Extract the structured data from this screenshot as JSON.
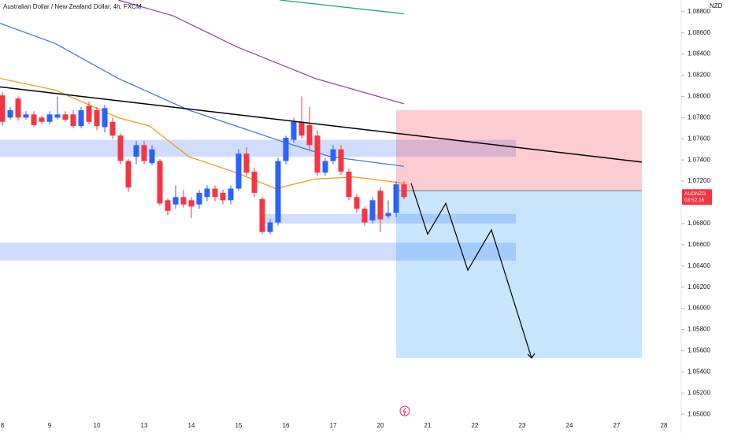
{
  "chart_data": {
    "type": "candlestick",
    "title": "Australian Dollar / New Zealand Dollar, 4h, FXCM",
    "currency_label": "NZD",
    "symbol_label": "AUDNZD",
    "countdown_label": "03:52:16",
    "up_color": "#2962ff",
    "down_color": "#f23645",
    "x": [
      0,
      1,
      2,
      3,
      4,
      5,
      6,
      7,
      8,
      9,
      10,
      11,
      12,
      13,
      14,
      15,
      16,
      17,
      18,
      19,
      20,
      21,
      22,
      23,
      24,
      25,
      26,
      27,
      28,
      29,
      30,
      31,
      32,
      33,
      34,
      35,
      36,
      37,
      38,
      39,
      40,
      41,
      42,
      43,
      44,
      45,
      46,
      47,
      48,
      49,
      50,
      51
    ],
    "open": [
      1.0801,
      1.078,
      1.0798,
      1.078,
      1.0783,
      1.078,
      1.0776,
      1.078,
      1.0783,
      1.0783,
      1.0772,
      1.0791,
      1.0787,
      1.0771,
      1.0776,
      1.0763,
      1.0739,
      1.0743,
      1.0754,
      1.0737,
      1.0739,
      1.0702,
      1.0698,
      1.0705,
      1.0702,
      1.0698,
      1.0705,
      1.0713,
      1.0709,
      1.0702,
      1.0713,
      1.0746,
      1.0729,
      1.0703,
      1.0672,
      1.0681,
      1.0739,
      1.0759,
      1.0776,
      1.0773,
      1.0763,
      1.0728,
      1.0739,
      1.075,
      1.0729,
      1.0705,
      1.0694,
      1.0683,
      1.0711,
      1.0687,
      1.069,
      1.0717
    ],
    "high": [
      1.0804,
      1.079,
      1.08,
      1.0786,
      1.0786,
      1.0782,
      1.0786,
      1.08,
      1.0786,
      1.0787,
      1.079,
      1.0795,
      1.079,
      1.0792,
      1.078,
      1.0765,
      1.0741,
      1.0758,
      1.0758,
      1.0754,
      1.0741,
      1.0704,
      1.0716,
      1.0712,
      1.0705,
      1.0712,
      1.0716,
      1.0716,
      1.0712,
      1.0716,
      1.075,
      1.0752,
      1.0733,
      1.0705,
      1.0684,
      1.0742,
      1.0763,
      1.078,
      1.08,
      1.079,
      1.0768,
      1.0742,
      1.0754,
      1.0754,
      1.0732,
      1.0708,
      1.0696,
      1.0705,
      1.0714,
      1.0702,
      1.072,
      1.072
    ],
    "low": [
      1.0772,
      1.0778,
      1.0777,
      1.0778,
      1.0771,
      1.0774,
      1.0774,
      1.0778,
      1.0776,
      1.077,
      1.077,
      1.0774,
      1.0768,
      1.0766,
      1.076,
      1.0736,
      1.071,
      1.0736,
      1.0736,
      1.0735,
      1.0697,
      1.0688,
      1.0694,
      1.0695,
      1.0685,
      1.0694,
      1.0701,
      1.0701,
      1.0698,
      1.0698,
      1.0711,
      1.0725,
      1.0705,
      1.067,
      1.067,
      1.0678,
      1.0736,
      1.0756,
      1.076,
      1.075,
      1.0725,
      1.0725,
      1.0736,
      1.0726,
      1.0702,
      1.069,
      1.0678,
      1.068,
      1.0672,
      1.0685,
      1.0686,
      1.0703
    ],
    "close": [
      1.0776,
      1.0787,
      1.078,
      1.0783,
      1.0773,
      1.0776,
      1.0783,
      1.0783,
      1.0778,
      1.0772,
      1.0787,
      1.0776,
      1.0772,
      1.0789,
      1.0763,
      1.0739,
      1.0714,
      1.0754,
      1.0739,
      1.075,
      1.0699,
      1.0692,
      1.0705,
      1.0698,
      1.0696,
      1.0709,
      1.0713,
      1.0705,
      1.0702,
      1.0713,
      1.0746,
      1.0728,
      1.0709,
      1.0672,
      1.0681,
      1.0739,
      1.0761,
      1.0776,
      1.0763,
      1.0754,
      1.0728,
      1.0739,
      1.075,
      1.0729,
      1.0705,
      1.0694,
      1.0681,
      1.0702,
      1.0684,
      1.069,
      1.0717,
      1.0705
    ],
    "lines": [
      {
        "color": "#f59b1b",
        "x": [
          -0.3,
          6.7,
          14.7,
          18.7,
          23.7,
          29.7,
          34.7,
          39.7,
          44.7,
          51
        ],
        "values": [
          1.0817,
          1.0806,
          1.078,
          1.0772,
          1.0743,
          1.0728,
          1.0713,
          1.0722,
          1.0724,
          1.0718
        ]
      },
      {
        "color": "#3c78d8",
        "x": [
          -0.3,
          6.7,
          14.7,
          23.7,
          29.7,
          35.7,
          41.7,
          51
        ],
        "values": [
          1.0869,
          1.085,
          1.0817,
          1.0787,
          1.0772,
          1.0757,
          1.0743,
          1.0734
        ]
      },
      {
        "color": "#a23fb5",
        "x": [
          14.7,
          21.7,
          29.7,
          39.7,
          51
        ],
        "values": [
          1.0891,
          1.0876,
          1.0847,
          1.0817,
          1.0793
        ]
      },
      {
        "color": "#1aa86a",
        "x": [
          35.2,
          51
        ],
        "values": [
          1.0891,
          1.0878
        ]
      }
    ],
    "trendline": {
      "color": "#000000",
      "x": [
        -0.3,
        81.2
      ],
      "values": [
        1.0809,
        1.0738
      ]
    },
    "zones": [
      {
        "x": [
          -0.3,
          65.2
        ],
        "y": [
          1.0743,
          1.0759
        ],
        "color": "#2962ff"
      },
      {
        "x": [
          33,
          65.2
        ],
        "y": [
          1.068,
          1.0689
        ],
        "color": "#2962ff"
      },
      {
        "x": [
          -0.3,
          65.2
        ],
        "y": [
          1.0645,
          1.0662
        ],
        "color": "#2962ff"
      }
    ],
    "position": {
      "x": [
        50,
        81.2
      ],
      "stop": 1.0787,
      "entry": 1.0711,
      "target": 1.0553,
      "risk_color": "#f23645",
      "reward_color": "#2196f3"
    },
    "projection": {
      "color": "#000000",
      "x": [
        51.9,
        54,
        56.3,
        59.1,
        62.1,
        67.2
      ],
      "values": [
        1.0718,
        1.067,
        1.0699,
        1.0636,
        1.0674,
        1.0553
      ]
    },
    "xlim": [
      -0.3,
      86.2
    ],
    "ylim": [
      1.0486,
      1.0891
    ],
    "xticks": [
      {
        "value": 0,
        "label": "8"
      },
      {
        "value": 6,
        "label": "9"
      },
      {
        "value": 12,
        "label": "10"
      },
      {
        "value": 18,
        "label": "13"
      },
      {
        "value": 24,
        "label": "14"
      },
      {
        "value": 30,
        "label": "15"
      },
      {
        "value": 36,
        "label": "16"
      },
      {
        "value": 42,
        "label": "17"
      },
      {
        "value": 48,
        "label": "20"
      },
      {
        "value": 54,
        "label": "21"
      },
      {
        "value": 60,
        "label": "22"
      },
      {
        "value": 66,
        "label": "23"
      },
      {
        "value": 72,
        "label": "24"
      },
      {
        "value": 78,
        "label": "27"
      },
      {
        "value": 84,
        "label": "28"
      }
    ],
    "yticks": [
      {
        "value": 1.088,
        "label": "1.08800"
      },
      {
        "value": 1.086,
        "label": "1.08600"
      },
      {
        "value": 1.084,
        "label": "1.08400"
      },
      {
        "value": 1.082,
        "label": "1.08200"
      },
      {
        "value": 1.08,
        "label": "1.08000"
      },
      {
        "value": 1.078,
        "label": "1.07800"
      },
      {
        "value": 1.076,
        "label": "1.07600"
      },
      {
        "value": 1.074,
        "label": "1.07400"
      },
      {
        "value": 1.072,
        "label": "1.07200"
      },
      {
        "value": 1.07,
        "label": "1.07000"
      },
      {
        "value": 1.068,
        "label": "1.06800"
      },
      {
        "value": 1.066,
        "label": "1.06600"
      },
      {
        "value": 1.064,
        "label": "1.06400"
      },
      {
        "value": 1.062,
        "label": "1.06200"
      },
      {
        "value": 1.06,
        "label": "1.06000"
      },
      {
        "value": 1.058,
        "label": "1.05800"
      },
      {
        "value": 1.056,
        "label": "1.05600"
      },
      {
        "value": 1.054,
        "label": "1.05400"
      },
      {
        "value": 1.052,
        "label": "1.05200"
      },
      {
        "value": 1.05,
        "label": "1.05000"
      }
    ]
  }
}
